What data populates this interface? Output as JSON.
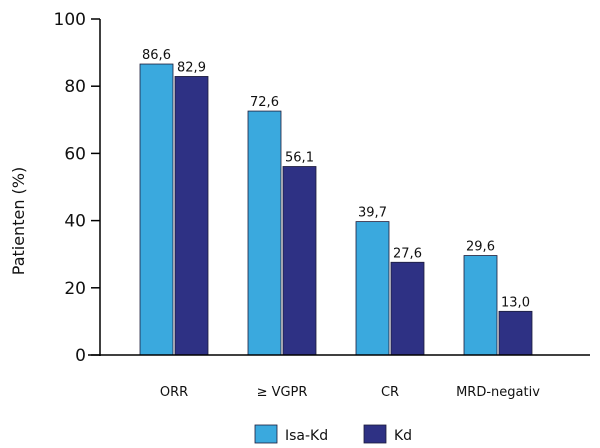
{
  "chart_data": {
    "type": "bar",
    "categories": [
      "ORR",
      "≥ VGPR",
      "CR",
      "MRD-negativ"
    ],
    "series": [
      {
        "name": "Isa-Kd",
        "values": [
          86.6,
          72.6,
          39.7,
          29.6
        ],
        "labels": [
          "86,6",
          "72,6",
          "39,7",
          "29,6"
        ],
        "color": "#3aa9de"
      },
      {
        "name": "Kd",
        "values": [
          82.9,
          56.1,
          27.6,
          13.0
        ],
        "labels": [
          "82,9",
          "56,1",
          "27,6",
          "13,0"
        ],
        "color": "#2e3184"
      }
    ],
    "ylabel": "Patienten (%)",
    "ylim": [
      0,
      100
    ],
    "yticks": [
      0,
      20,
      40,
      60,
      80,
      100
    ],
    "grid": false,
    "legend": "bottom-center"
  }
}
